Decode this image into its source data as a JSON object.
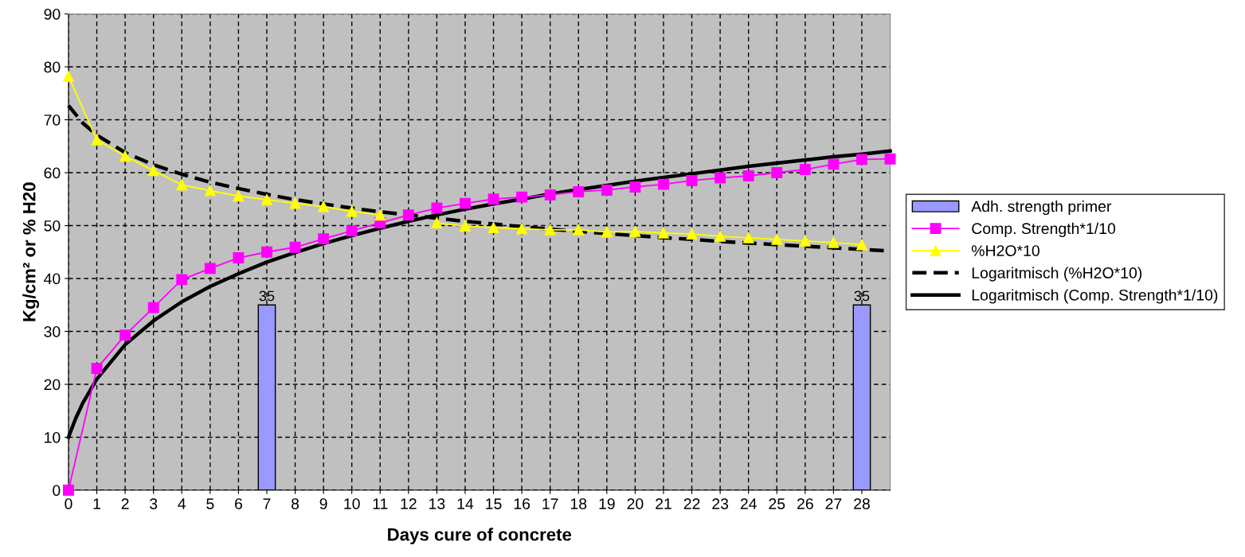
{
  "chart_data": {
    "type": "line",
    "xlabel": "Days cure of concrete",
    "ylabel": "Kg/cm² or % H20",
    "xlim": [
      0,
      29
    ],
    "xticks": [
      0,
      1,
      2,
      3,
      4,
      5,
      6,
      7,
      8,
      9,
      10,
      11,
      12,
      13,
      14,
      15,
      16,
      17,
      18,
      19,
      20,
      21,
      22,
      23,
      24,
      25,
      26,
      27,
      28
    ],
    "ylim": [
      0,
      90
    ],
    "yticks": [
      0,
      10,
      20,
      30,
      40,
      50,
      60,
      70,
      80,
      90
    ],
    "grid": true,
    "legend": "right",
    "series": [
      {
        "name": "Adh. strength primer",
        "type": "bar",
        "color": "#9999ff",
        "x": [
          7,
          28
        ],
        "values": [
          35,
          35
        ],
        "data_labels": true
      },
      {
        "name": "Comp. Strength*1/10",
        "color": "#ff00ff",
        "marker": "square",
        "line_style": "solid",
        "x": [
          0,
          1,
          2,
          3,
          4,
          5,
          6,
          7,
          8,
          9,
          10,
          11,
          12,
          13,
          14,
          15,
          16,
          17,
          18,
          19,
          20,
          21,
          22,
          23,
          24,
          25,
          26,
          27,
          28,
          29
        ],
        "values": [
          0,
          23,
          29.3,
          34.5,
          39.8,
          41.9,
          43.9,
          45,
          45.9,
          47.5,
          49,
          50.5,
          52,
          53.3,
          54.2,
          55,
          55.4,
          55.8,
          56.4,
          56.7,
          57.3,
          57.8,
          58.5,
          59,
          59.4,
          60,
          60.6,
          61.6,
          62.5,
          62.6
        ]
      },
      {
        "name": "%H2O*10",
        "color": "#ffff00",
        "marker": "triangle",
        "line_style": "solid",
        "x": [
          0,
          1,
          2,
          3,
          4,
          5,
          6,
          7,
          8,
          9,
          10,
          11,
          12,
          13,
          14,
          15,
          16,
          17,
          18,
          19,
          20,
          21,
          22,
          23,
          24,
          25,
          26,
          27,
          28
        ],
        "values": [
          78.2,
          66.2,
          63.1,
          60.4,
          57.7,
          56.6,
          55.6,
          54.9,
          54.2,
          53.6,
          52.7,
          52,
          null,
          50.5,
          49.9,
          49.6,
          49.4,
          49.2,
          49.2,
          48.8,
          48.9,
          48.6,
          48.4,
          48,
          47.7,
          47.4,
          47.1,
          46.8,
          46.4
        ]
      },
      {
        "name": "Logaritmisch (%H2O*10)",
        "color": "#000000",
        "marker": "none",
        "line_style": "dashed",
        "x": [
          0,
          0.5,
          1,
          2,
          3,
          4,
          5,
          6,
          7,
          8,
          9,
          10,
          11,
          12,
          13,
          14,
          15,
          16,
          17,
          18,
          19,
          20,
          21,
          22,
          23,
          24,
          25,
          26,
          27,
          28,
          29
        ],
        "values": [
          72.7,
          69.4,
          67.1,
          63.8,
          61.5,
          59.7,
          58.2,
          57,
          55.9,
          54.9,
          54.1,
          53.3,
          52.6,
          52,
          51.4,
          50.8,
          50.3,
          49.8,
          49.3,
          48.9,
          48.5,
          48.1,
          47.7,
          47.4,
          47,
          46.7,
          46.4,
          46.1,
          45.8,
          45.5,
          45.2
        ]
      },
      {
        "name": "Logaritmisch (Comp. Strength*1/10)",
        "color": "#000000",
        "marker": "none",
        "line_style": "solid",
        "x": [
          0,
          0.25,
          0.5,
          1,
          2,
          3,
          4,
          5,
          6,
          7,
          8,
          9,
          10,
          11,
          12,
          13,
          14,
          15,
          16,
          17,
          18,
          19,
          20,
          21,
          22,
          23,
          24,
          25,
          26,
          27,
          28,
          29
        ],
        "values": [
          10,
          13.5,
          16.4,
          21,
          27.5,
          32,
          35.6,
          38.5,
          40.9,
          43.1,
          44.9,
          46.6,
          48.1,
          49.5,
          50.8,
          52,
          53.1,
          54.1,
          55,
          56,
          56.8,
          57.6,
          58.4,
          59.1,
          59.8,
          60.5,
          61.2,
          61.8,
          62.4,
          63,
          63.5,
          64.1
        ]
      }
    ]
  }
}
